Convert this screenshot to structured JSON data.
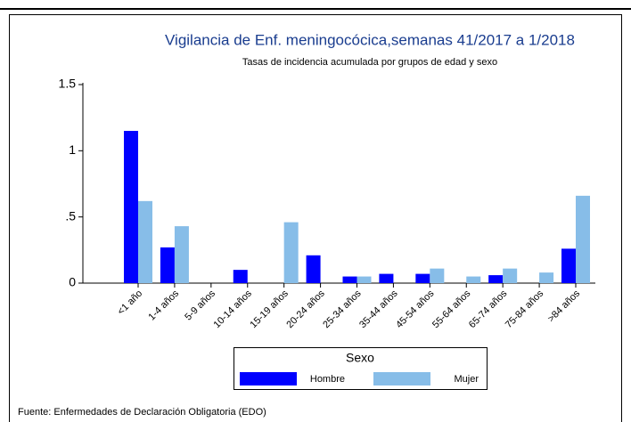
{
  "chart_data": {
    "type": "bar",
    "title": "Vigilancia de Enf. meningocócica,semanas 41/2017 a 1/2018",
    "subtitle": "Tasas de incidencia acumulada por grupos de edad y sexo",
    "categories": [
      "<1 año",
      "1-4 años",
      "5-9 años",
      "10-14 años",
      "15-19 años",
      "20-24 años",
      "25-34 años",
      "35-44 años",
      "45-54 años",
      "55-64 años",
      "65-74 años",
      "75-84 años",
      ">84 años"
    ],
    "series": [
      {
        "name": "Hombre",
        "color": "#0000ff",
        "values": [
          1.15,
          0.27,
          0,
          0.1,
          0,
          0.21,
          0.05,
          0.07,
          0.07,
          0,
          0.06,
          0,
          0.26
        ]
      },
      {
        "name": "Mujer",
        "color": "#87bde8",
        "values": [
          0.62,
          0.43,
          0,
          0,
          0.46,
          0,
          0.05,
          0,
          0.11,
          0.05,
          0.11,
          0.08,
          0.66
        ]
      }
    ],
    "ylim": [
      0,
      1.5
    ],
    "yticks": [
      0,
      {
        "value": 0.5,
        "label": ".5"
      },
      1,
      1.5
    ],
    "legend_title": "Sexo",
    "source": "Fuente: Enfermedades de Declaración Obligatoria (EDO)"
  }
}
